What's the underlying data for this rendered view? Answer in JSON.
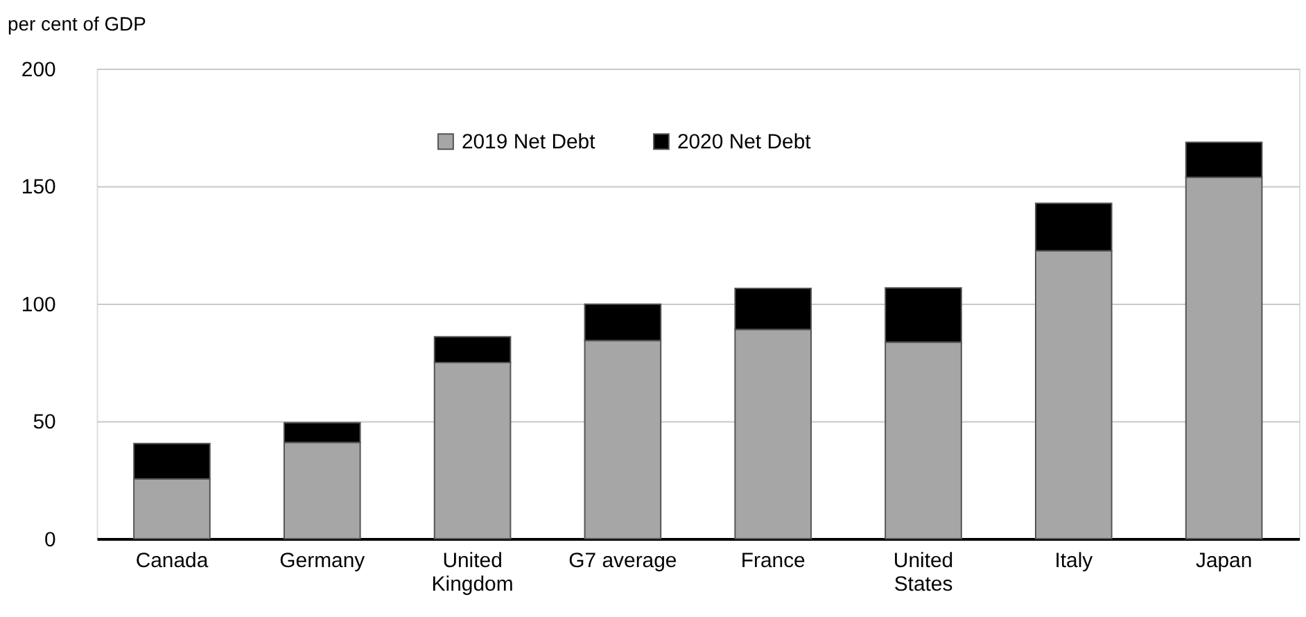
{
  "chart_data": {
    "type": "bar",
    "ylabel": "per cent of GDP",
    "categories": [
      "Canada",
      "Germany",
      "United Kingdom",
      "G7 average",
      "France",
      "United States",
      "Italy",
      "Japan"
    ],
    "series": [
      {
        "name": "2019 Net Debt",
        "color": "#a6a6a6",
        "values": [
          25.4,
          40.9,
          74.9,
          84.3,
          89.0,
          83.6,
          122.5,
          153.8
        ]
      },
      {
        "name": "2020 Net Debt",
        "color": "#000000",
        "values": [
          15.1,
          8.4,
          11.0,
          15.5,
          17.5,
          23.1,
          20.2,
          14.9
        ]
      }
    ],
    "stacked": true,
    "ylim": [
      0,
      200
    ],
    "yticks": [
      0,
      50,
      100,
      150,
      200
    ],
    "grid": "y",
    "legend": "top"
  }
}
